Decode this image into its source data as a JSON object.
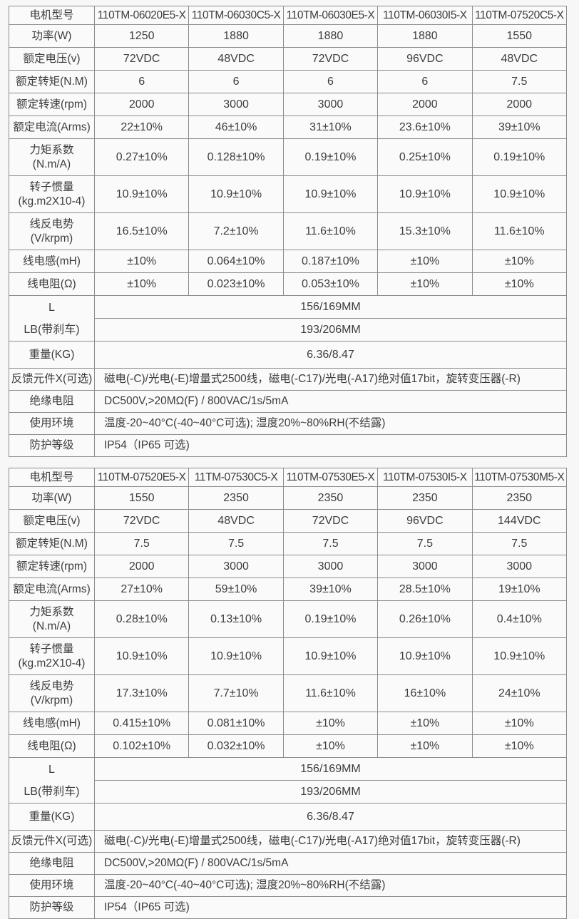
{
  "colors": {
    "page_bg": "#f7f7f7",
    "cell_bg": "#fafafa",
    "border": "#8c8c8c",
    "text": "#3d3d3d"
  },
  "tables": [
    {
      "header": {
        "label": "电机型号",
        "models": [
          "110TM-06020E5-X",
          "110TM-06030C5-X",
          "110TM-06030E5-X",
          "110TM-06030I5-X",
          "110TM-07520C5-X"
        ]
      },
      "spec_rows": [
        {
          "label": "功率(W)",
          "tall": false,
          "values": [
            "1250",
            "1880",
            "1880",
            "1880",
            "1550"
          ]
        },
        {
          "label": "额定电压(v)",
          "tall": false,
          "values": [
            "72VDC",
            "48VDC",
            "72VDC",
            "96VDC",
            "48VDC"
          ]
        },
        {
          "label": "额定转矩(N.M)",
          "tall": false,
          "values": [
            "6",
            "6",
            "6",
            "6",
            "7.5"
          ]
        },
        {
          "label": "额定转速(rpm)",
          "tall": false,
          "values": [
            "2000",
            "3000",
            "3000",
            "2000",
            "2000"
          ]
        },
        {
          "label": "额定电流(Arms)",
          "tall": false,
          "values": [
            "22±10%",
            "46±10%",
            "31±10%",
            "23.6±10%",
            "39±10%"
          ]
        },
        {
          "label": "力矩系数\n(N.m/A)",
          "tall": true,
          "values": [
            "0.27±10%",
            "0.128±10%",
            "0.19±10%",
            "0.25±10%",
            "0.19±10%"
          ]
        },
        {
          "label": "转子惯量\n(kg.m2X10-4)",
          "tall": true,
          "values": [
            "10.9±10%",
            "10.9±10%",
            "10.9±10%",
            "10.9±10%",
            "10.9±10%"
          ]
        },
        {
          "label": "线反电势\n(V/krpm)",
          "tall": true,
          "values": [
            "16.5±10%",
            "7.2±10%",
            "11.6±10%",
            "15.3±10%",
            "11.6±10%"
          ]
        },
        {
          "label": "线电感(mH)",
          "tall": false,
          "values": [
            "±10%",
            "0.064±10%",
            "0.187±10%",
            "±10%",
            "±10%"
          ]
        },
        {
          "label": "线电阻(Ω)",
          "tall": false,
          "values": [
            "±10%",
            "0.023±10%",
            "0.053±10%",
            "±10%",
            "±10%"
          ]
        }
      ],
      "dim_rows": {
        "labels": [
          "L",
          "LB(带刹车)"
        ],
        "values": [
          "156/169MM",
          "193/206MM"
        ]
      },
      "full_rows": [
        {
          "label": "重量(KG)",
          "value": "6.36/8.47",
          "align": "center"
        },
        {
          "label": "反馈元件X(可选)",
          "value": "磁电(-C)/光电(-E)增量式2500线，磁电(-C17)/光电(-A17)绝对值17bit，旋转变压器(-R)",
          "align": "left"
        },
        {
          "label": "绝缘电阻",
          "value": "DC500V,>20MΩ(F) / 800VAC/1s/5mA",
          "align": "left"
        },
        {
          "label": "使用环境",
          "value": "温度-20~40°C(-40~40°C可选); 湿度20%~80%RH(不结露)",
          "align": "left"
        },
        {
          "label": "防护等级",
          "value": "IP54（IP65 可选)",
          "align": "left"
        }
      ]
    },
    {
      "header": {
        "label": "电机型号",
        "models": [
          "110TM-07520E5-X",
          "11TM-07530C5-X",
          "110TM-07530E5-X",
          "110TM-07530I5-X",
          "110TM-07530M5-X"
        ]
      },
      "spec_rows": [
        {
          "label": "功率(W)",
          "tall": false,
          "values": [
            "1550",
            "2350",
            "2350",
            "2350",
            "2350"
          ]
        },
        {
          "label": "额定电压(v)",
          "tall": false,
          "values": [
            "72VDC",
            "48VDC",
            "72VDC",
            "96VDC",
            "144VDC"
          ]
        },
        {
          "label": "额定转矩(N.M)",
          "tall": false,
          "values": [
            "7.5",
            "7.5",
            "7.5",
            "7.5",
            "7.5"
          ]
        },
        {
          "label": "额定转速(rpm)",
          "tall": false,
          "values": [
            "2000",
            "3000",
            "3000",
            "3000",
            "3000"
          ]
        },
        {
          "label": "额定电流(Arms)",
          "tall": false,
          "values": [
            "27±10%",
            "59±10%",
            "39±10%",
            "28.5±10%",
            "19±10%"
          ]
        },
        {
          "label": "力矩系数\n(N.m/A)",
          "tall": true,
          "values": [
            "0.28±10%",
            "0.13±10%",
            "0.19±10%",
            "0.26±10%",
            "0.4±10%"
          ]
        },
        {
          "label": "转子惯量\n(kg.m2X10-4)",
          "tall": true,
          "values": [
            "10.9±10%",
            "10.9±10%",
            "10.9±10%",
            "10.9±10%",
            "10.9±10%"
          ]
        },
        {
          "label": "线反电势\n(V/krpm)",
          "tall": true,
          "values": [
            "17.3±10%",
            "7.7±10%",
            "11.6±10%",
            "16±10%",
            "24±10%"
          ]
        },
        {
          "label": "线电感(mH)",
          "tall": false,
          "values": [
            "0.415±10%",
            "0.081±10%",
            "±10%",
            "±10%",
            "±10%"
          ]
        },
        {
          "label": "线电阻(Ω)",
          "tall": false,
          "values": [
            "0.102±10%",
            "0.032±10%",
            "±10%",
            "±10%",
            "±10%"
          ]
        }
      ],
      "dim_rows": {
        "labels": [
          "L",
          "LB(带刹车)"
        ],
        "values": [
          "156/169MM",
          "193/206MM"
        ]
      },
      "full_rows": [
        {
          "label": "重量(KG)",
          "value": "6.36/8.47",
          "align": "center"
        },
        {
          "label": "反馈元件X(可选)",
          "value": "磁电(-C)/光电(-E)增量式2500线，磁电(-C17)/光电(-A17)绝对值17bit，旋转变压器(-R)",
          "align": "left"
        },
        {
          "label": "绝缘电阻",
          "value": "DC500V,>20MΩ(F) / 800VAC/1s/5mA",
          "align": "left"
        },
        {
          "label": "使用环境",
          "value": "温度-20~40°C(-40~40°C可选); 湿度20%~80%RH(不结露)",
          "align": "left"
        },
        {
          "label": "防护等级",
          "value": "IP54（IP65 可选)",
          "align": "left"
        }
      ]
    }
  ]
}
